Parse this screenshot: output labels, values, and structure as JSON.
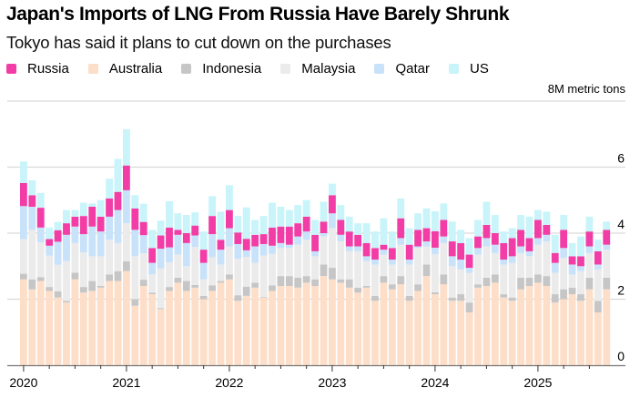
{
  "header": {
    "title": "Japan's Imports of LNG From Russia Have Barely Shrunk",
    "subtitle": "Tokyo has said it plans to cut down on the purchases"
  },
  "legend": [
    {
      "name": "Russia",
      "color": "#f13da5"
    },
    {
      "name": "Australia",
      "color": "#fddec8"
    },
    {
      "name": "Indonesia",
      "color": "#c6c6c6"
    },
    {
      "name": "Malaysia",
      "color": "#ebebeb"
    },
    {
      "name": "Qatar",
      "color": "#c8e2fa"
    },
    {
      "name": "US",
      "color": "#c8f4fa"
    }
  ],
  "unit_label": "8M metric tons",
  "chart_data": {
    "type": "bar",
    "stacked": true,
    "title": "Japan's Imports of LNG From Russia Have Barely Shrunk",
    "subtitle": "Tokyo has said it plans to cut down on the purchases",
    "xlabel": "",
    "ylabel": "Million metric tons",
    "ylim": [
      0,
      8
    ],
    "yticks": [
      0,
      2,
      4,
      6,
      8
    ],
    "ytick_labels": [
      "0",
      "2",
      "4",
      "6",
      "8M metric tons"
    ],
    "grid": true,
    "legend_position": "top-left",
    "xtick_labels": [
      "2020",
      "2021",
      "2022",
      "2023",
      "2024",
      "2025"
    ],
    "categories": [
      "2020-01",
      "2020-02",
      "2020-03",
      "2020-04",
      "2020-05",
      "2020-06",
      "2020-07",
      "2020-08",
      "2020-09",
      "2020-10",
      "2020-11",
      "2020-12",
      "2021-01",
      "2021-02",
      "2021-03",
      "2021-04",
      "2021-05",
      "2021-06",
      "2021-07",
      "2021-08",
      "2021-09",
      "2021-10",
      "2021-11",
      "2021-12",
      "2022-01",
      "2022-02",
      "2022-03",
      "2022-04",
      "2022-05",
      "2022-06",
      "2022-07",
      "2022-08",
      "2022-09",
      "2022-10",
      "2022-11",
      "2022-12",
      "2023-01",
      "2023-02",
      "2023-03",
      "2023-04",
      "2023-05",
      "2023-06",
      "2023-07",
      "2023-08",
      "2023-09",
      "2023-10",
      "2023-11",
      "2023-12",
      "2024-01",
      "2024-02",
      "2024-03",
      "2024-04",
      "2024-05",
      "2024-06",
      "2024-07",
      "2024-08",
      "2024-09",
      "2024-10",
      "2024-11",
      "2024-12",
      "2025-01",
      "2025-02",
      "2025-03",
      "2025-04",
      "2025-05",
      "2025-06",
      "2025-07",
      "2025-08",
      "2025-09"
    ],
    "series": [
      {
        "name": "Australia",
        "values": [
          2.6,
          2.3,
          2.55,
          2.25,
          2.05,
          1.9,
          2.6,
          2.2,
          2.25,
          2.35,
          2.55,
          2.55,
          2.85,
          1.8,
          2.4,
          2.15,
          1.7,
          2.25,
          2.5,
          2.25,
          2.35,
          2.0,
          2.25,
          2.5,
          2.6,
          1.95,
          2.1,
          2.35,
          2.05,
          2.25,
          2.4,
          2.4,
          2.35,
          2.5,
          2.4,
          2.7,
          2.6,
          2.5,
          2.35,
          2.2,
          2.35,
          1.95,
          2.5,
          2.3,
          2.45,
          1.95,
          2.25,
          2.7,
          2.15,
          2.45,
          1.95,
          1.95,
          1.6,
          2.35,
          2.4,
          2.5,
          2.05,
          1.95,
          2.3,
          2.4,
          2.5,
          2.4,
          1.9,
          2.0,
          2.15,
          1.95,
          2.3,
          1.6,
          2.3
        ]
      },
      {
        "name": "Indonesia",
        "values": [
          0.17,
          0.3,
          0.12,
          0.12,
          0.19,
          0.05,
          0.2,
          0.17,
          0.3,
          0.05,
          0.2,
          0.3,
          0.3,
          0.2,
          0.19,
          0.05,
          0.03,
          0.12,
          0.15,
          0.3,
          0.08,
          0.1,
          0.17,
          0.05,
          0.15,
          0.17,
          0.28,
          0.15,
          0.02,
          0.17,
          0.3,
          0.3,
          0.3,
          0.2,
          0.2,
          0.35,
          0.35,
          0.1,
          0.25,
          0.15,
          0.05,
          0.15,
          0.2,
          0.15,
          0.25,
          0.15,
          0.2,
          0.35,
          0.06,
          0.3,
          0.1,
          0.2,
          0.3,
          0.1,
          0.25,
          0.25,
          0.1,
          0.1,
          0.35,
          0.25,
          0.25,
          0.3,
          0.25,
          0.3,
          0.2,
          0.2,
          0.35,
          0.35,
          0.35
        ]
      },
      {
        "name": "Malaysia",
        "values": [
          1.05,
          1.5,
          1.05,
          0.95,
          0.8,
          1.2,
          0.9,
          1.05,
          0.75,
          0.9,
          1.05,
          0.85,
          1.15,
          1.3,
          0.8,
          0.55,
          1.2,
          0.75,
          0.7,
          0.45,
          1.15,
          0.5,
          0.85,
          0.5,
          0.85,
          1.1,
          0.9,
          0.6,
          1.25,
          0.95,
          0.85,
          0.85,
          1.0,
          1.1,
          0.7,
          0.85,
          1.2,
          1.15,
          0.85,
          1.1,
          0.75,
          0.95,
          0.65,
          0.6,
          0.95,
          0.95,
          1.1,
          0.55,
          1.15,
          0.95,
          0.95,
          0.75,
          0.9,
          0.9,
          0.95,
          0.65,
          0.9,
          1.05,
          0.75,
          0.65,
          0.9,
          1.05,
          0.65,
          0.95,
          0.4,
          0.7,
          0.75,
          0.95,
          0.85
        ]
      },
      {
        "name": "Qatar",
        "values": [
          1.0,
          0.7,
          0.45,
          0.3,
          0.7,
          0.8,
          0.5,
          0.55,
          0.9,
          0.75,
          0.7,
          1.0,
          1.0,
          0.8,
          0.55,
          0.35,
          0.6,
          0.45,
          0.6,
          0.7,
          0.35,
          0.5,
          0.7,
          0.45,
          0.55,
          0.45,
          0.2,
          0.5,
          0.35,
          0.25,
          0.15,
          0.1,
          0.25,
          0.25,
          0.15,
          0.1,
          0.45,
          0.2,
          0.15,
          0.15,
          0.15,
          0.15,
          0.15,
          0.15,
          0.2,
          0.15,
          0.05,
          0.15,
          0.2,
          0.2,
          0.3,
          0.3,
          0.15,
          0.2,
          0.25,
          0.25,
          0.15,
          0.2,
          0.2,
          0.15,
          0.2,
          0.2,
          0.3,
          0.3,
          0.3,
          0.15,
          0.2,
          0.15,
          0.15
        ]
      },
      {
        "name": "Russia",
        "values": [
          0.7,
          0.35,
          0.6,
          0.2,
          0.35,
          0.35,
          0.3,
          0.55,
          0.6,
          0.45,
          0.55,
          0.55,
          0.75,
          0.65,
          0.4,
          0.45,
          0.4,
          0.6,
          0.15,
          0.3,
          0.3,
          0.4,
          0.55,
          0.3,
          0.55,
          0.35,
          0.35,
          0.35,
          0.3,
          0.55,
          0.5,
          0.55,
          0.4,
          0.45,
          0.5,
          0.35,
          0.55,
          0.45,
          0.45,
          0.35,
          0.4,
          0.35,
          0.15,
          0.35,
          0.6,
          0.45,
          0.5,
          0.4,
          0.5,
          0.5,
          0.45,
          0.5,
          0.4,
          0.35,
          0.4,
          0.35,
          0.5,
          0.55,
          0.5,
          0.4,
          0.55,
          0.3,
          0.3,
          0.55,
          0.25,
          0.3,
          0.45,
          0.4,
          0.45
        ]
      },
      {
        "name": "US",
        "values": [
          0.65,
          0.45,
          0.45,
          0.35,
          0.25,
          0.4,
          0.2,
          0.4,
          0.1,
          0.5,
          0.6,
          1.0,
          1.1,
          0.4,
          0.55,
          0.55,
          0.45,
          0.8,
          0.5,
          0.55,
          0.4,
          0.55,
          0.6,
          0.85,
          0.75,
          0.5,
          0.95,
          0.45,
          0.55,
          0.75,
          0.6,
          0.5,
          0.55,
          0.5,
          0.45,
          0.6,
          0.35,
          0.45,
          0.45,
          0.35,
          0.6,
          0.5,
          0.8,
          0.5,
          0.6,
          0.5,
          0.5,
          0.6,
          0.6,
          0.5,
          0.6,
          0.4,
          0.5,
          0.5,
          0.7,
          0.55,
          0.35,
          0.3,
          0.45,
          0.65,
          0.3,
          0.4,
          0.55,
          0.45,
          0.4,
          0.6,
          0.45,
          0.35,
          0.25
        ]
      }
    ]
  }
}
